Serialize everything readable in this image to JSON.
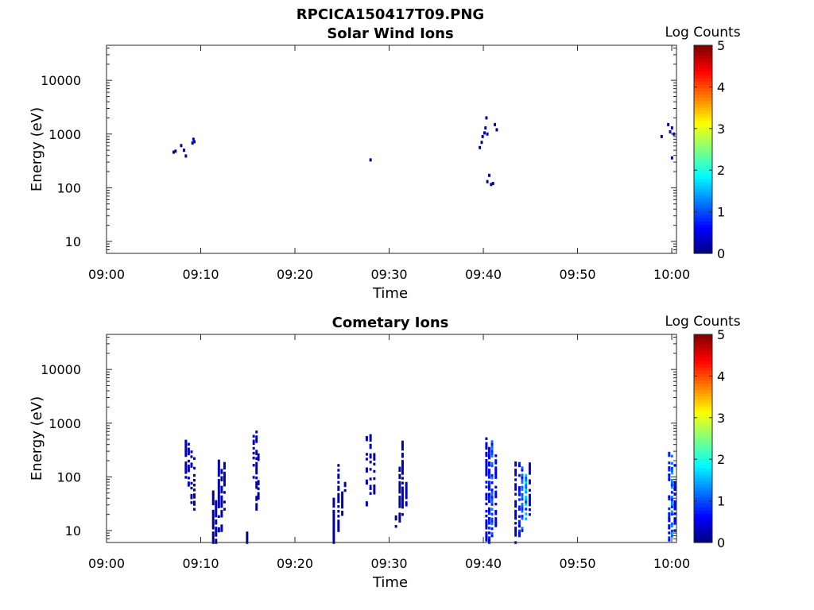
{
  "figure_title": "RPCICA150417T09.PNG",
  "colors": {
    "colormap": [
      "#00007f",
      "#0000ff",
      "#007fff",
      "#00ffff",
      "#7fff7f",
      "#ffff00",
      "#ff7f00",
      "#ff0000",
      "#7f0000"
    ]
  },
  "chart_data": [
    {
      "type": "heatmap",
      "title": "Solar Wind Ions",
      "xlabel": "Time",
      "ylabel": "Energy (eV)",
      "x_ticks": [
        "09:00",
        "09:10",
        "09:20",
        "09:30",
        "09:40",
        "09:50",
        "10:00"
      ],
      "x_range_min": [
        0,
        60.5
      ],
      "y_scale": "log",
      "y_range_ev": [
        6,
        45000
      ],
      "y_ticks": [
        10,
        100,
        1000,
        10000
      ],
      "y_tick_labels": [
        "10",
        "100",
        "1000",
        "10000"
      ],
      "colorbar": {
        "label": "Log Counts",
        "range": [
          0,
          5
        ],
        "ticks": [
          "0",
          "1",
          "2",
          "3",
          "4",
          "5"
        ]
      },
      "cells": [
        [
          7.0,
          460,
          0.1
        ],
        [
          7.2,
          480,
          0.1
        ],
        [
          7.8,
          610,
          0.2
        ],
        [
          8.1,
          500,
          0.1
        ],
        [
          8.3,
          390,
          0.1
        ],
        [
          9.0,
          680,
          0.2
        ],
        [
          9.1,
          800,
          0.3
        ],
        [
          9.2,
          720,
          0.2
        ],
        [
          27.9,
          330,
          0.1
        ],
        [
          39.5,
          560,
          0.1
        ],
        [
          39.7,
          700,
          0.1
        ],
        [
          39.8,
          900,
          0.2
        ],
        [
          40.0,
          1050,
          0.2
        ],
        [
          40.1,
          1300,
          0.3
        ],
        [
          40.2,
          2000,
          0.2
        ],
        [
          40.3,
          1000,
          0.2
        ],
        [
          41.1,
          1500,
          0.2
        ],
        [
          41.3,
          1200,
          0.1
        ],
        [
          40.5,
          170,
          0.2
        ],
        [
          40.3,
          130,
          0.2
        ],
        [
          40.7,
          115,
          0.2
        ],
        [
          40.9,
          120,
          0.1
        ],
        [
          58.8,
          900,
          0.2
        ],
        [
          59.5,
          1500,
          0.4
        ],
        [
          59.7,
          1100,
          0.5
        ],
        [
          59.9,
          1300,
          0.3
        ],
        [
          60.1,
          1000,
          0.2
        ],
        [
          59.9,
          360,
          0.2
        ]
      ]
    },
    {
      "type": "heatmap",
      "title": "Cometary Ions",
      "xlabel": "Time",
      "ylabel": "Energy (eV)",
      "x_ticks": [
        "09:00",
        "09:10",
        "09:20",
        "09:30",
        "09:40",
        "09:50",
        "10:00"
      ],
      "x_range_min": [
        0,
        60.5
      ],
      "y_scale": "log",
      "y_range_ev": [
        6,
        45000
      ],
      "y_ticks": [
        10,
        100,
        1000,
        10000
      ],
      "y_tick_labels": [
        "10",
        "100",
        "1000",
        "10000"
      ],
      "colorbar": {
        "label": "Log Counts",
        "range": [
          0,
          5
        ],
        "ticks": [
          "0",
          "1",
          "2",
          "3",
          "4",
          "5"
        ]
      },
      "columns": [
        [
          8.3,
          80,
          500,
          0.2,
          0.6
        ],
        [
          8.6,
          70,
          450,
          0.3,
          0.6
        ],
        [
          8.9,
          30,
          300,
          0.2,
          0.5
        ],
        [
          9.2,
          25,
          250,
          0.2,
          0.5
        ],
        [
          11.2,
          6,
          55,
          0.1,
          0.9
        ],
        [
          11.5,
          6,
          40,
          0.2,
          0.8
        ],
        [
          11.8,
          8,
          400,
          0.2,
          0.6
        ],
        [
          12.1,
          10,
          150,
          0.2,
          0.6
        ],
        [
          12.4,
          25,
          250,
          0.2,
          0.5
        ],
        [
          14.8,
          6,
          10,
          0.1,
          1.0
        ],
        [
          15.5,
          80,
          600,
          0.3,
          0.5
        ],
        [
          15.8,
          25,
          700,
          0.2,
          0.6
        ],
        [
          16.0,
          40,
          300,
          0.2,
          0.5
        ],
        [
          24.0,
          6,
          50,
          0.1,
          0.9
        ],
        [
          24.5,
          10,
          200,
          0.2,
          0.6
        ],
        [
          24.9,
          20,
          80,
          0.2,
          0.6
        ],
        [
          25.2,
          30,
          100,
          0.2,
          0.5
        ],
        [
          27.5,
          30,
          600,
          0.2,
          0.5
        ],
        [
          27.9,
          40,
          650,
          0.3,
          0.5
        ],
        [
          28.3,
          50,
          300,
          0.2,
          0.6
        ],
        [
          30.6,
          12,
          20,
          0.1,
          0.4
        ],
        [
          31.0,
          15,
          150,
          0.2,
          0.6
        ],
        [
          31.3,
          20,
          500,
          0.2,
          0.6
        ],
        [
          31.7,
          30,
          100,
          0.3,
          0.5
        ],
        [
          40.2,
          6,
          600,
          0.4,
          0.6
        ],
        [
          40.5,
          6,
          350,
          0.6,
          0.6
        ],
        [
          40.8,
          8,
          500,
          0.9,
          0.6
        ],
        [
          41.2,
          10,
          250,
          0.5,
          0.6
        ],
        [
          43.3,
          6,
          200,
          0.3,
          0.7
        ],
        [
          43.7,
          8,
          180,
          0.6,
          0.6
        ],
        [
          44.0,
          10,
          200,
          0.9,
          0.6
        ],
        [
          44.4,
          15,
          150,
          1.2,
          0.6
        ],
        [
          44.8,
          20,
          180,
          0.4,
          0.6
        ],
        [
          59.6,
          6,
          300,
          0.6,
          0.6
        ],
        [
          59.9,
          8,
          250,
          1.0,
          0.6
        ],
        [
          60.2,
          10,
          200,
          0.5,
          0.6
        ]
      ]
    }
  ]
}
